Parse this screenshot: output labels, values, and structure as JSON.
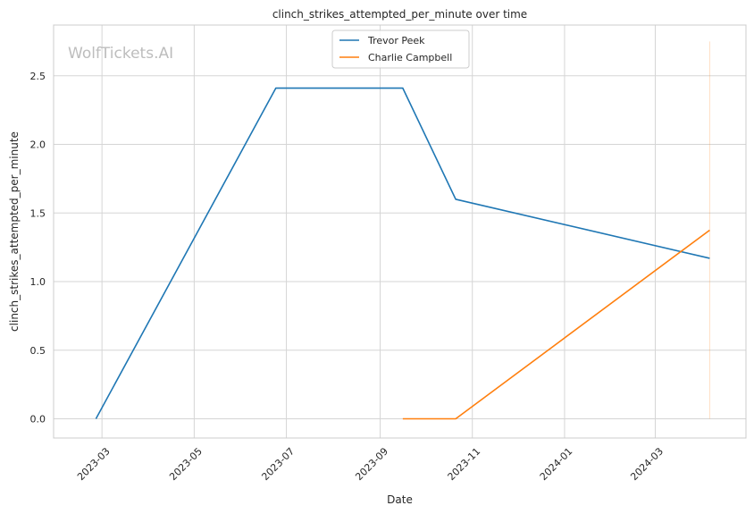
{
  "chart_data": {
    "type": "line",
    "title": "clinch_strikes_attempted_per_minute over time",
    "xlabel": "Date",
    "ylabel": "clinch_strikes_attempted_per_minute",
    "watermark": "WolfTickets.AI",
    "grid": true,
    "legend_position": "top-center",
    "xlim": [
      "2023-01-28",
      "2024-04-30"
    ],
    "ylim": [
      -0.14,
      2.87
    ],
    "x_ticks": [
      {
        "date": "2023-03-01",
        "label": "2023-03"
      },
      {
        "date": "2023-05-01",
        "label": "2023-05"
      },
      {
        "date": "2023-07-01",
        "label": "2023-07"
      },
      {
        "date": "2023-09-01",
        "label": "2023-09"
      },
      {
        "date": "2023-11-01",
        "label": "2023-11"
      },
      {
        "date": "2024-01-01",
        "label": "2024-01"
      },
      {
        "date": "2024-03-01",
        "label": "2024-03"
      }
    ],
    "y_ticks": [
      {
        "value": 0.0,
        "label": "0.0"
      },
      {
        "value": 0.5,
        "label": "0.5"
      },
      {
        "value": 1.0,
        "label": "1.0"
      },
      {
        "value": 1.5,
        "label": "1.5"
      },
      {
        "value": 2.0,
        "label": "2.0"
      },
      {
        "value": 2.5,
        "label": "2.5"
      }
    ],
    "series": [
      {
        "name": "Trevor Peek",
        "color": "#1f77b4",
        "points": [
          {
            "x": "2023-02-25",
            "y": 0.0
          },
          {
            "x": "2023-06-24",
            "y": 2.41
          },
          {
            "x": "2023-09-16",
            "y": 2.41
          },
          {
            "x": "2023-10-21",
            "y": 1.6
          },
          {
            "x": "2024-04-06",
            "y": 1.17
          }
        ]
      },
      {
        "name": "Charlie Campbell",
        "color": "#ff7f0e",
        "points": [
          {
            "x": "2023-09-16",
            "y": 0.0
          },
          {
            "x": "2023-10-21",
            "y": 0.0
          },
          {
            "x": "2024-04-06",
            "y": 1.375
          }
        ]
      }
    ],
    "reference_line": {
      "x": "2024-04-06",
      "y_range": [
        0.0,
        2.75
      ],
      "color": "#ff7f0e"
    }
  }
}
